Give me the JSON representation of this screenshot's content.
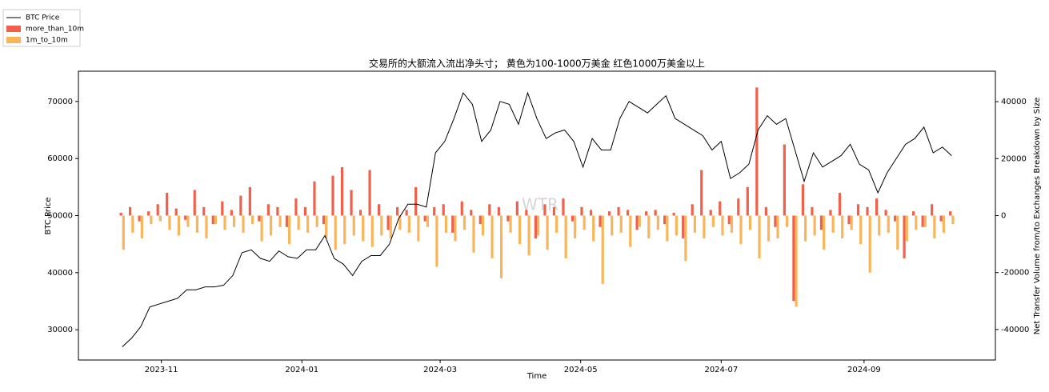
{
  "chart_data": {
    "type": "combo",
    "title": "交易所的大额流入流出净头寸； 黄色为100-1000万美金 红色1000万美金以上",
    "xlabel": "Time",
    "ylabel": "BTC Price",
    "y2label": "Net Transfer Volume from/to Exchanges Breakdown by Size",
    "watermark": "WTR",
    "legend": "upper left",
    "x": [
      "2023-10-15",
      "2023-10-19",
      "2023-10-23",
      "2023-10-27",
      "2023-10-31",
      "2023-11-04",
      "2023-11-08",
      "2023-11-12",
      "2023-11-16",
      "2023-11-20",
      "2023-11-24",
      "2023-11-28",
      "2023-12-02",
      "2023-12-06",
      "2023-12-10",
      "2023-12-14",
      "2023-12-18",
      "2023-12-22",
      "2023-12-26",
      "2023-12-30",
      "2024-01-03",
      "2024-01-07",
      "2024-01-11",
      "2024-01-15",
      "2024-01-19",
      "2024-01-23",
      "2024-01-27",
      "2024-01-31",
      "2024-02-04",
      "2024-02-08",
      "2024-02-12",
      "2024-02-16",
      "2024-02-20",
      "2024-02-24",
      "2024-02-28",
      "2024-03-03",
      "2024-03-07",
      "2024-03-11",
      "2024-03-15",
      "2024-03-19",
      "2024-03-23",
      "2024-03-27",
      "2024-03-31",
      "2024-04-04",
      "2024-04-08",
      "2024-04-12",
      "2024-04-16",
      "2024-04-20",
      "2024-04-24",
      "2024-04-28",
      "2024-05-02",
      "2024-05-06",
      "2024-05-10",
      "2024-05-14",
      "2024-05-18",
      "2024-05-22",
      "2024-05-26",
      "2024-05-30",
      "2024-06-03",
      "2024-06-07",
      "2024-06-11",
      "2024-06-15",
      "2024-06-19",
      "2024-06-23",
      "2024-06-27",
      "2024-07-01",
      "2024-07-05",
      "2024-07-09",
      "2024-07-13",
      "2024-07-17",
      "2024-07-21",
      "2024-07-25",
      "2024-07-29",
      "2024-08-02",
      "2024-08-06",
      "2024-08-10",
      "2024-08-14",
      "2024-08-18",
      "2024-08-22",
      "2024-08-26",
      "2024-08-30",
      "2024-09-03",
      "2024-09-07",
      "2024-09-11",
      "2024-09-15",
      "2024-09-19",
      "2024-09-23",
      "2024-09-27",
      "2024-10-01",
      "2024-10-05",
      "2024-10-09"
    ],
    "xlim": [
      "2023-09-26",
      "2024-10-28"
    ],
    "xticks": [
      {
        "value": "2023-11-01",
        "label": "2023-11"
      },
      {
        "value": "2024-01-01",
        "label": "2024-01"
      },
      {
        "value": "2024-03-01",
        "label": "2024-03"
      },
      {
        "value": "2024-05-01",
        "label": "2024-05"
      },
      {
        "value": "2024-07-01",
        "label": "2024-07"
      },
      {
        "value": "2024-09-01",
        "label": "2024-09"
      }
    ],
    "ylim": [
      24700,
      75300
    ],
    "yticks": [
      30000,
      40000,
      50000,
      60000,
      70000
    ],
    "y2lim": [
      -50700,
      50700
    ],
    "y2ticks": [
      -40000,
      -20000,
      0,
      20000,
      40000
    ],
    "series": [
      {
        "name": "BTC Price",
        "type": "line",
        "color": "#000000",
        "values": [
          27000,
          28500,
          30500,
          34000,
          34500,
          35000,
          35500,
          37000,
          37000,
          37500,
          37500,
          37800,
          39500,
          43500,
          44000,
          42500,
          42000,
          43800,
          42800,
          42500,
          44000,
          44000,
          46500,
          42500,
          41500,
          39500,
          42000,
          43000,
          43000,
          45000,
          49500,
          52000,
          52000,
          51500,
          61000,
          63000,
          67000,
          71500,
          69500,
          63000,
          65000,
          70000,
          69500,
          66000,
          71500,
          67000,
          63500,
          64500,
          65000,
          63000,
          58500,
          63500,
          61500,
          61500,
          67000,
          70000,
          69000,
          68000,
          69500,
          71000,
          67000,
          66000,
          65000,
          64000,
          61500,
          63000,
          56500,
          57500,
          59000,
          65000,
          67500,
          66000,
          67000,
          61500,
          56000,
          61000,
          58500,
          59500,
          60500,
          62500,
          59000,
          58000,
          54000,
          57500,
          60000,
          62500,
          63500,
          65500,
          61000,
          62000,
          60500
        ]
      },
      {
        "name": "more_than_10m",
        "type": "bar",
        "axis": "y2",
        "color": "#f0604a",
        "values": [
          1000,
          3000,
          -2000,
          1500,
          4000,
          8000,
          2500,
          -1500,
          9000,
          3000,
          -3000,
          5000,
          2000,
          7000,
          10000,
          -2000,
          4000,
          3000,
          -4000,
          6000,
          3000,
          12000,
          -3000,
          14000,
          17000,
          9000,
          2000,
          16000,
          4000,
          -5000,
          3000,
          2000,
          10000,
          -2000,
          3000,
          4000,
          -6000,
          5000,
          2000,
          -3000,
          4000,
          3000,
          -2000,
          5000,
          2000,
          -8000,
          4000,
          3000,
          6000,
          -2000,
          3000,
          2000,
          -4000,
          1500,
          3000,
          2000,
          -5000,
          1500,
          2000,
          -3000,
          1000,
          -8000,
          4000,
          16000,
          2000,
          5000,
          -3000,
          6000,
          10000,
          45000,
          3000,
          -4000,
          25000,
          -30000,
          11000,
          3000,
          -5000,
          2000,
          8000,
          -3000,
          4000,
          3000,
          6000,
          2000,
          -2000,
          -15000,
          1500,
          -4000,
          4000,
          -2000,
          1500
        ]
      },
      {
        "name": "1m_to_10m",
        "type": "bar",
        "axis": "y2",
        "color": "#f9b55a",
        "values": [
          -12000,
          -6000,
          -8000,
          -3000,
          -2000,
          -5000,
          -7000,
          -4000,
          -6000,
          -8000,
          -3000,
          -5000,
          -4000,
          -6000,
          -3000,
          -9000,
          -7000,
          -4000,
          -10000,
          -5000,
          -6000,
          -4000,
          -8000,
          -12000,
          -10000,
          -7000,
          -9000,
          -11000,
          -7000,
          -8000,
          -5000,
          -6000,
          -9000,
          -4000,
          -18000,
          -6000,
          -9000,
          -5000,
          -13000,
          -7000,
          -15000,
          -22000,
          -6000,
          -10000,
          -14000,
          -7000,
          -12000,
          -6000,
          -15000,
          -8000,
          -5000,
          -9000,
          -24000,
          -7000,
          -6000,
          -11000,
          -4000,
          -8000,
          -5000,
          -9000,
          -7000,
          -16000,
          -6000,
          -8000,
          -4000,
          -7000,
          -6000,
          -10000,
          -5000,
          -15000,
          -9000,
          -8000,
          -4000,
          -32000,
          -9000,
          -7000,
          -12000,
          -6000,
          -8000,
          -5000,
          -10000,
          -20000,
          -7000,
          -6000,
          -12000,
          -9000,
          -5000,
          -4000,
          -8000,
          -6000,
          -3000
        ]
      }
    ]
  }
}
